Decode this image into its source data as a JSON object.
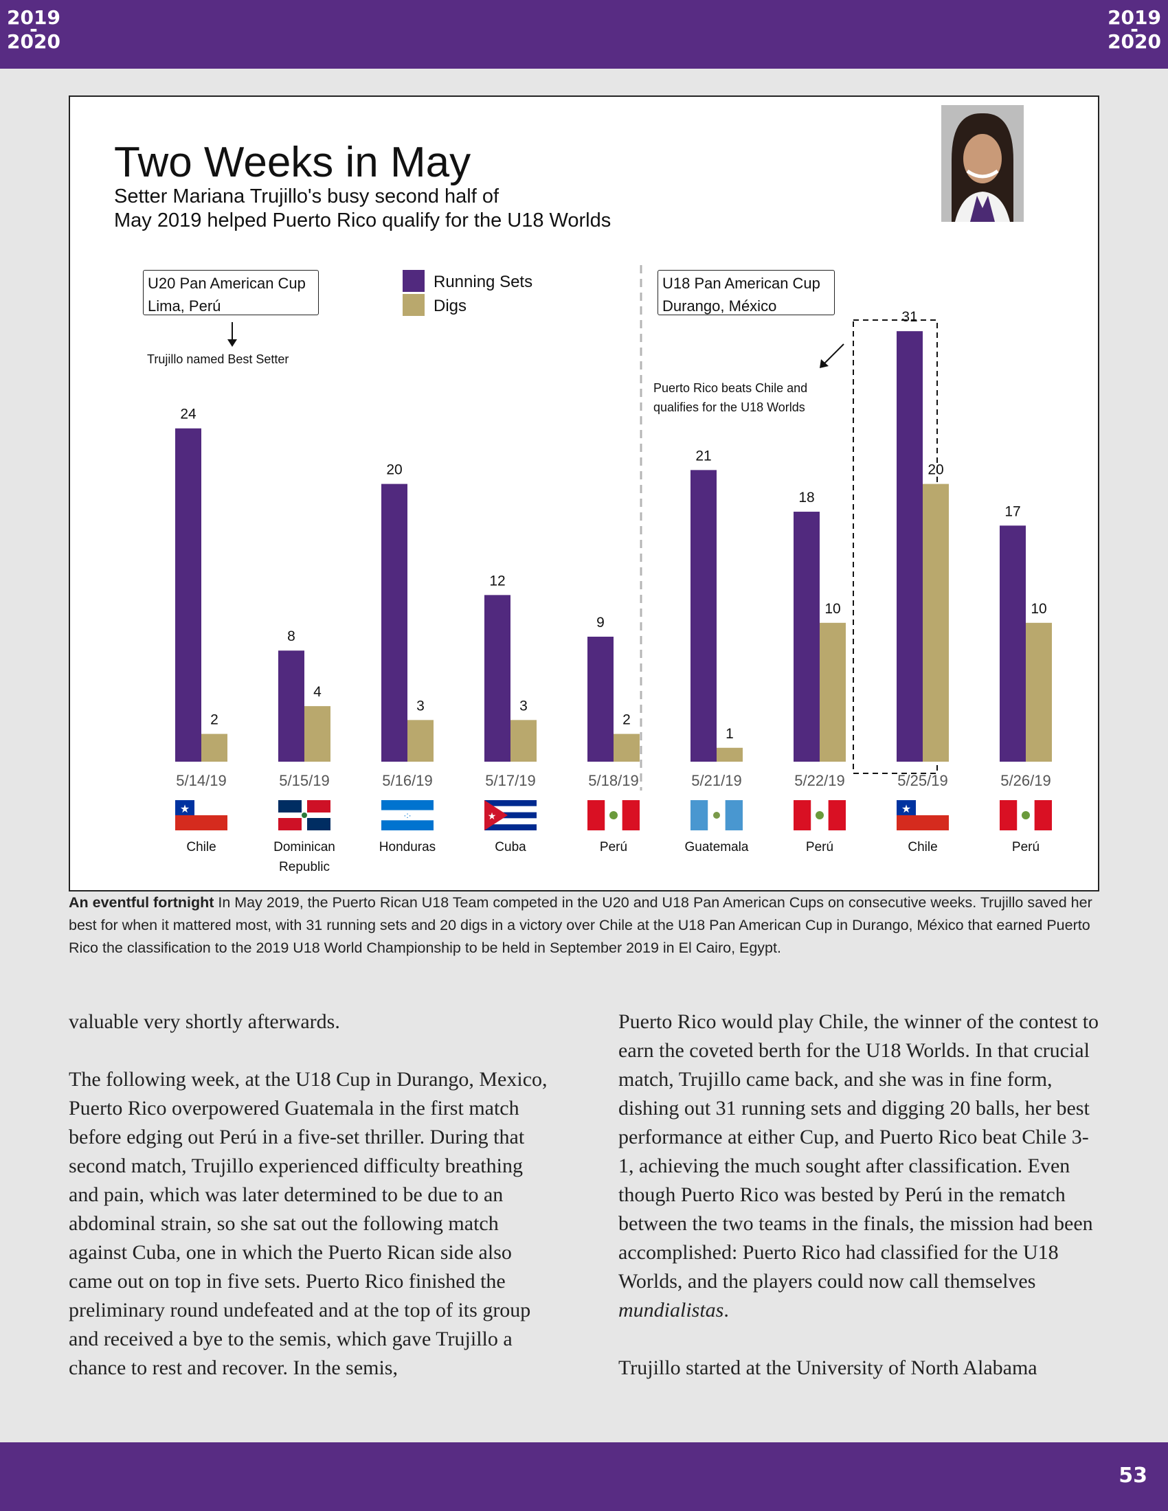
{
  "header": {
    "season_line1": "2019",
    "season_dash": "-",
    "season_line2": "2020"
  },
  "footer": {
    "page_number": "53"
  },
  "colors": {
    "brand_purple": "#582c83",
    "running_sets": "#51297e",
    "digs": "#b9a86d"
  },
  "chart_data": {
    "type": "bar",
    "title": "Two Weeks in May",
    "subtitle_line1": "Setter Mariana Trujillo's busy second half of",
    "subtitle_line2": "May 2019 helped Puerto Rico qualify for the U18 Worlds",
    "categories": [
      "5/14/19",
      "5/15/19",
      "5/16/19",
      "5/17/19",
      "5/18/19",
      "5/21/19",
      "5/22/19",
      "5/25/19",
      "5/26/19"
    ],
    "opponents": [
      "Chile",
      "Dominican Republic",
      "Honduras",
      "Cuba",
      "Perú",
      "Guatemala",
      "Perú",
      "Chile",
      "Perú"
    ],
    "series": [
      {
        "name": "Running Sets",
        "values": [
          24,
          8,
          20,
          12,
          9,
          21,
          18,
          31,
          17
        ]
      },
      {
        "name": "Digs",
        "values": [
          2,
          4,
          3,
          3,
          2,
          1,
          10,
          20,
          10
        ]
      }
    ],
    "ylim": [
      0,
      31
    ],
    "legend_position": "top-center",
    "grid": false,
    "tournaments": [
      {
        "line1": "U20 Pan American Cup",
        "line2": "Lima,  Perú"
      },
      {
        "line1": "U18 Pan American Cup",
        "line2": "Durango,  México"
      }
    ],
    "annotations": {
      "best_setter": "Trujillo named Best Setter",
      "qualify_line1": "Puerto Rico beats Chile and",
      "qualify_line2": "qualifies for the U18 Worlds"
    }
  },
  "caption": {
    "lead": "An eventful fortnight",
    "text": " In May 2019, the Puerto Rican U18 Team competed in the U20 and U18 Pan American Cups on consecutive weeks. Trujillo saved her best for when it mattered most, with 31 running sets and 20 digs in a victory over Chile at the U18 Pan American Cup in Durango, México that earned Puerto Rico the classification to the 2019 U18 World Championship to be held in September 2019 in El Cairo, Egypt."
  },
  "article": {
    "left_p1": "valuable very shortly afterwards.",
    "left_p2": "The following week, at the U18 Cup in Durango, Mexico, Puerto Rico overpowered Guatemala in the first match before edging out Perú in a five-set thriller. During that second match, Trujillo experienced difficulty breathing and pain, which was later determined to be due to an abdominal strain, so she sat out the following match against Cuba, one in which the Puerto Rican side also came out on top in five sets. Puerto Rico finished the preliminary round undefeated and at the top of its group and received a bye to the semis, which gave Trujillo a chance to rest and recover. In the semis,",
    "right_p1_a": "Puerto Rico would play Chile, the winner of the contest to earn the coveted berth for the U18 Worlds. In that crucial match, Trujillo came back, and she was in fine form, dishing out 31 running sets and digging 20 balls, her best performance at either Cup, and Puerto Rico beat Chile 3-1, achieving the much sought after classification. Even though Puerto Rico was bested by Perú in the rematch between the two teams in the finals, the mission had been accomplished: Puerto Rico had classified for the U18 Worlds, and the players could now call themselves ",
    "right_p1_em": "mundialistas",
    "right_p1_end": ".",
    "right_p2": "Trujillo started at the University of North Alabama"
  }
}
